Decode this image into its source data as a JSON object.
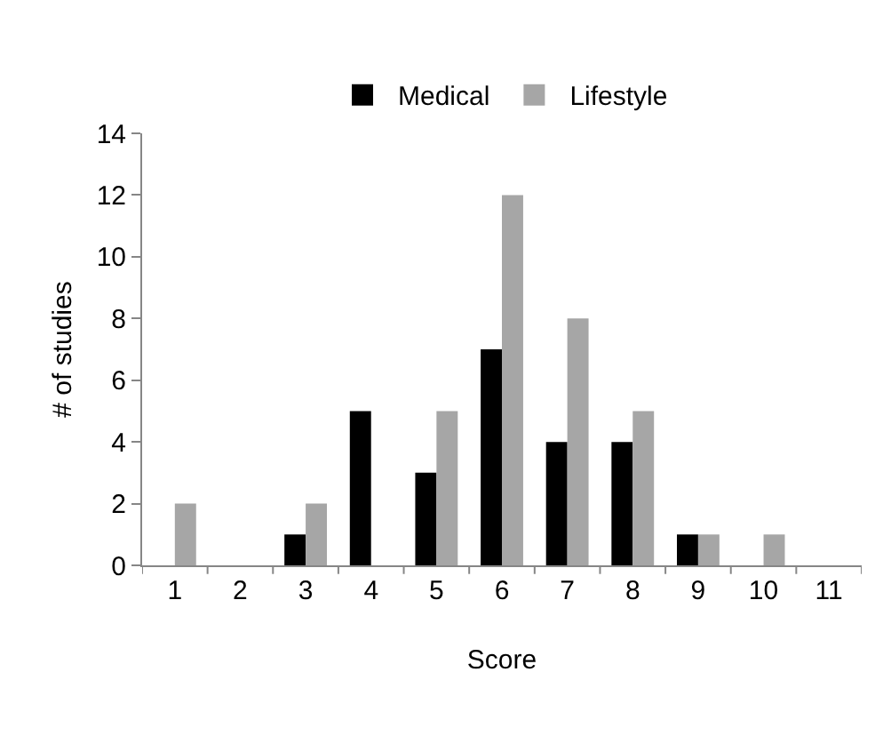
{
  "chart_data": {
    "type": "bar",
    "xlabel": "Score",
    "ylabel": "# of studies",
    "categories": [
      "1",
      "2",
      "3",
      "4",
      "5",
      "6",
      "7",
      "8",
      "9",
      "10",
      "11"
    ],
    "series": [
      {
        "name": "Medical",
        "color": "#000000",
        "values": [
          0,
          0,
          1,
          5,
          3,
          7,
          4,
          4,
          1,
          0,
          0
        ]
      },
      {
        "name": "Lifestyle",
        "color": "#a6a6a6",
        "values": [
          2,
          0,
          2,
          0,
          5,
          12,
          8,
          5,
          1,
          1,
          0
        ]
      }
    ],
    "ylim": [
      0,
      14
    ],
    "yticks": [
      0,
      2,
      4,
      6,
      8,
      10,
      12,
      14
    ],
    "grid": false,
    "legend": "top"
  }
}
